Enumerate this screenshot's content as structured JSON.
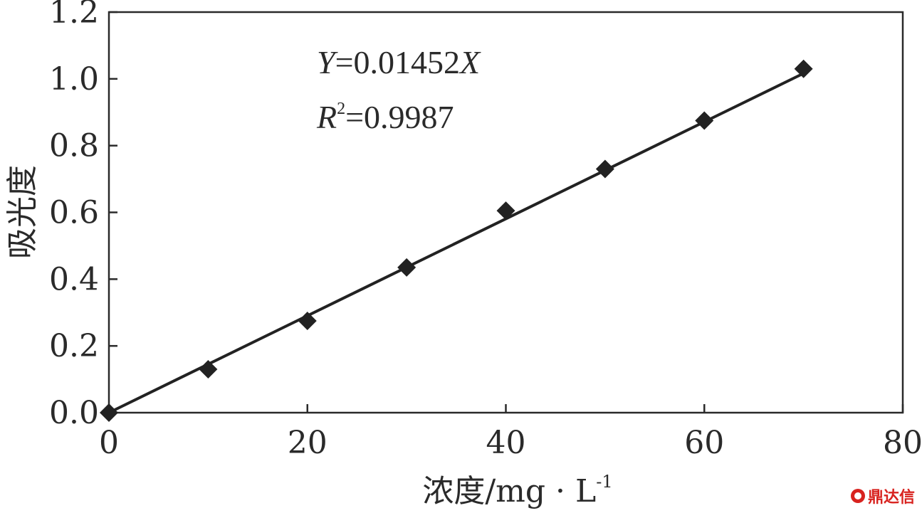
{
  "chart_data": {
    "type": "scatter",
    "title": "",
    "xlabel": "浓度/mg · L",
    "xlabel_sup": "-1",
    "ylabel": "吸光度",
    "xlim": [
      0,
      80
    ],
    "ylim": [
      0,
      1.2
    ],
    "xticks": [
      0,
      20,
      40,
      60,
      80
    ],
    "xtick_labels": [
      "0",
      "20",
      "40",
      "60",
      "80"
    ],
    "yticks": [
      0.0,
      0.2,
      0.4,
      0.6,
      0.8,
      1.0,
      1.2
    ],
    "ytick_labels": [
      "0.0",
      "0.2",
      "0.4",
      "0.6",
      "0.8",
      "1.0",
      "1.2"
    ],
    "grid": false,
    "legend": "none",
    "series": [
      {
        "marker": "diamond",
        "x": [
          0,
          10,
          20,
          30,
          40,
          50,
          60,
          70
        ],
        "y": [
          0.0,
          0.13,
          0.275,
          0.435,
          0.605,
          0.73,
          0.875,
          1.03
        ]
      }
    ],
    "fit": {
      "slope": 0.01452,
      "intercept": 0,
      "x_range": [
        0,
        70
      ]
    },
    "annotations": {
      "equation": {
        "y_var": "Y",
        "eq": "=0.01452",
        "x_var": "X"
      },
      "r2": {
        "var": "R",
        "sup": "2",
        "eq": "=0.9987"
      }
    },
    "colors": {
      "data": "#222222",
      "axis": "#2a2a2a"
    }
  },
  "watermark": {
    "text": "鼎达信"
  }
}
